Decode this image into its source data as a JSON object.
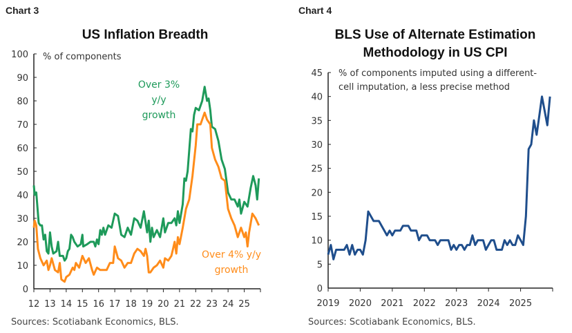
{
  "colors": {
    "green": "#1e9a5a",
    "orange": "#ff8c1a",
    "navy": "#1f4e8c",
    "axis": "#222222"
  },
  "chart_data": [
    {
      "type": "line",
      "label": "Chart 3",
      "title": "US Inflation Breadth",
      "ylabel": "% of components",
      "source": "Sources: Scotiabank Economics, BLS.",
      "xlim": [
        12,
        26
      ],
      "ylim": [
        0,
        100
      ],
      "xticks": [
        "12",
        "13",
        "14",
        "15",
        "16",
        "17",
        "18",
        "19",
        "20",
        "21",
        "22",
        "23",
        "24",
        "25"
      ],
      "yticks": [
        "0",
        "10",
        "20",
        "30",
        "40",
        "50",
        "60",
        "70",
        "80",
        "90",
        "100"
      ],
      "series": [
        {
          "name": "Over 3% y/y growth",
          "annotation": [
            "Over 3%",
            "y/y",
            "growth"
          ],
          "color": "#1e9a5a",
          "x": [
            12.0,
            12.05,
            12.15,
            12.3,
            12.4,
            12.5,
            12.6,
            12.7,
            12.8,
            12.9,
            13.0,
            13.1,
            13.2,
            13.4,
            13.5,
            13.6,
            13.8,
            13.9,
            14.0,
            14.1,
            14.2,
            14.3,
            14.4,
            14.5,
            14.7,
            14.9,
            15.0,
            15.05,
            15.3,
            15.5,
            15.7,
            15.8,
            15.9,
            16.0,
            16.1,
            16.2,
            16.3,
            16.4,
            16.6,
            16.8,
            17.0,
            17.2,
            17.4,
            17.6,
            17.8,
            18.0,
            18.2,
            18.4,
            18.6,
            18.8,
            19.0,
            19.1,
            19.2,
            19.3,
            19.4,
            19.6,
            19.8,
            20.0,
            20.1,
            20.3,
            20.5,
            20.7,
            20.8,
            20.9,
            21.0,
            21.2,
            21.3,
            21.4,
            21.5,
            21.7,
            21.8,
            21.9,
            22.0,
            22.2,
            22.4,
            22.55,
            22.7,
            22.8,
            22.9,
            23.0,
            23.2,
            23.4,
            23.6,
            23.8,
            24.0,
            24.2,
            24.4,
            24.6,
            24.7,
            24.8,
            25.0,
            25.2,
            25.4,
            25.55,
            25.7,
            25.8,
            25.9
          ],
          "y": [
            44,
            40,
            41,
            28,
            27,
            27,
            21,
            23,
            16,
            15,
            24,
            18,
            15,
            16,
            20,
            14,
            14,
            12,
            13,
            16,
            17,
            23,
            22,
            20,
            18,
            19,
            23,
            18,
            19,
            20,
            20,
            18,
            21,
            19,
            25,
            23,
            26,
            23,
            27,
            26,
            32,
            31,
            23,
            22,
            26,
            23,
            30,
            29,
            26,
            33,
            24,
            29,
            20,
            26,
            22,
            25,
            22,
            30,
            24,
            28,
            28,
            30,
            27,
            33,
            28,
            36,
            47,
            46,
            50,
            68,
            67,
            74,
            77,
            76,
            80,
            86,
            80,
            81,
            76,
            69,
            68,
            63,
            55,
            51,
            41,
            38,
            38,
            35,
            38,
            32,
            37,
            35,
            43,
            48,
            44,
            38,
            47
          ]
        },
        {
          "name": "Over 4% y/y growth",
          "annotation": [
            "Over 4% y/y",
            "growth"
          ],
          "color": "#ff8c1a",
          "x": [
            12.0,
            12.05,
            12.15,
            12.25,
            12.4,
            12.6,
            12.8,
            12.9,
            13.0,
            13.1,
            13.3,
            13.5,
            13.6,
            13.7,
            13.9,
            14.0,
            14.2,
            14.4,
            14.5,
            14.6,
            14.8,
            15.0,
            15.2,
            15.4,
            15.6,
            15.7,
            15.9,
            16.1,
            16.3,
            16.5,
            16.7,
            16.9,
            17.0,
            17.2,
            17.4,
            17.6,
            17.8,
            18.0,
            18.2,
            18.4,
            18.6,
            18.8,
            18.9,
            19.0,
            19.1,
            19.2,
            19.4,
            19.6,
            19.8,
            20.0,
            20.1,
            20.3,
            20.5,
            20.6,
            20.7,
            20.8,
            20.9,
            21.0,
            21.2,
            21.4,
            21.6,
            21.8,
            22.0,
            22.1,
            22.3,
            22.55,
            22.7,
            22.9,
            23.0,
            23.2,
            23.4,
            23.6,
            23.8,
            24.0,
            24.2,
            24.4,
            24.6,
            24.8,
            25.0,
            25.1,
            25.2,
            25.3,
            25.5,
            25.7,
            25.9
          ],
          "y": [
            26,
            29,
            27,
            17,
            13,
            10,
            12,
            8,
            10,
            13,
            8,
            7,
            11,
            4,
            3,
            5,
            6,
            9,
            8,
            11,
            9,
            14,
            11,
            13,
            8,
            6,
            9,
            8,
            8,
            8,
            11,
            11,
            18,
            13,
            12,
            9,
            11,
            11,
            15,
            17,
            16,
            14,
            17,
            14,
            7,
            7,
            9,
            10,
            12,
            9,
            13,
            12,
            14,
            17,
            20,
            15,
            22,
            19,
            26,
            34,
            38,
            48,
            61,
            70,
            70,
            75,
            72,
            70,
            60,
            55,
            52,
            47,
            46,
            34,
            30,
            27,
            22,
            26,
            22,
            24,
            18,
            24,
            32,
            30,
            27
          ]
        }
      ]
    },
    {
      "type": "line",
      "label": "Chart 4",
      "title": [
        "BLS Use of Alternate Estimation",
        "Methodology in US CPI"
      ],
      "ylabel": [
        "% of components imputed using a different-",
        "cell imputation, a less precise method"
      ],
      "source": "Sources: Scotiabank Economics, BLS.",
      "xlim": [
        2019,
        2026
      ],
      "ylim": [
        0,
        45
      ],
      "xticks": [
        "2019",
        "2020",
        "2021",
        "2022",
        "2023",
        "2024",
        "2025"
      ],
      "yticks": [
        "0",
        "5",
        "10",
        "15",
        "20",
        "25",
        "30",
        "35",
        "40",
        "45"
      ],
      "series": [
        {
          "color": "#1f4e8c",
          "start": "2019-01",
          "frequency": "monthly",
          "values": [
            7,
            9,
            6,
            8,
            8,
            8,
            8,
            9,
            7,
            9,
            7,
            8,
            8,
            7,
            10,
            16,
            15,
            14,
            14,
            14,
            13,
            12,
            11,
            12,
            11,
            12,
            12,
            12,
            13,
            13,
            13,
            12,
            12,
            12,
            10,
            11,
            11,
            11,
            10,
            10,
            10,
            9,
            10,
            10,
            10,
            10,
            8,
            9,
            8,
            9,
            9,
            8,
            9,
            9,
            11,
            9,
            10,
            10,
            10,
            8,
            9,
            10,
            10,
            8,
            8,
            8,
            10,
            9,
            10,
            9,
            9,
            11,
            10,
            9,
            15,
            29,
            30,
            35,
            32,
            36,
            40,
            37,
            34,
            40
          ]
        }
      ]
    }
  ]
}
